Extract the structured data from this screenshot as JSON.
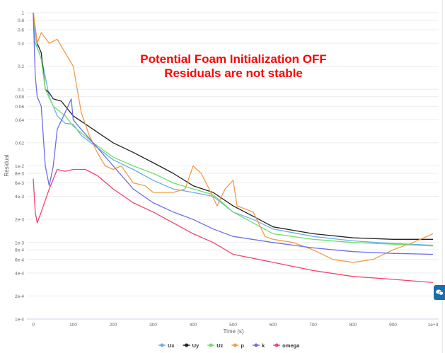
{
  "chart_data": {
    "type": "line",
    "title": "",
    "annotation": [
      "Potential Foam Initialization OFF",
      "Residuals are not stable"
    ],
    "annotation_color": "#ff0000",
    "xlabel": "Time (s)",
    "ylabel": "Residual",
    "xlim": [
      0,
      1000
    ],
    "ylim": [
      0.0001,
      1
    ],
    "y_scale": "log",
    "grid": true,
    "legend_position": "bottom",
    "x_ticks": [
      "0",
      "100",
      "200",
      "300",
      "400",
      "500",
      "600",
      "700",
      "800",
      "900",
      "1e+3"
    ],
    "y_ticks": [
      {
        "v": 1,
        "label": "1"
      },
      {
        "v": 0.8,
        "label": "0.8"
      },
      {
        "v": 0.6,
        "label": "0.6"
      },
      {
        "v": 0.4,
        "label": "0.4"
      },
      {
        "v": 0.2,
        "label": "0.2"
      },
      {
        "v": 0.1,
        "label": "0.1"
      },
      {
        "v": 0.08,
        "label": "0.08"
      },
      {
        "v": 0.06,
        "label": "0.06"
      },
      {
        "v": 0.04,
        "label": "0.04"
      },
      {
        "v": 0.02,
        "label": "0.02"
      },
      {
        "v": 0.01,
        "label": "1e-2"
      },
      {
        "v": 0.008,
        "label": "8e-3"
      },
      {
        "v": 0.006,
        "label": "6e-3"
      },
      {
        "v": 0.004,
        "label": "4e-3"
      },
      {
        "v": 0.002,
        "label": "2e-3"
      },
      {
        "v": 0.001,
        "label": "1e-3"
      },
      {
        "v": 0.0008,
        "label": "8e-4"
      },
      {
        "v": 0.0006,
        "label": "6e-4"
      },
      {
        "v": 0.0004,
        "label": "4e-4"
      },
      {
        "v": 0.0002,
        "label": "2e-4"
      },
      {
        "v": 0.0001,
        "label": "1e-4"
      }
    ],
    "series": [
      {
        "name": "Ux",
        "color": "#6aaee8",
        "x": [
          0,
          5,
          15,
          25,
          40,
          50,
          60,
          80,
          100,
          120,
          150,
          200,
          250,
          300,
          350,
          400,
          450,
          500,
          550,
          600,
          700,
          800,
          900,
          1000
        ],
        "y": [
          1,
          0.4,
          0.3,
          0.2,
          0.08,
          0.06,
          0.045,
          0.036,
          0.035,
          0.025,
          0.019,
          0.012,
          0.009,
          0.0065,
          0.005,
          0.0045,
          0.004,
          0.0025,
          0.002,
          0.0015,
          0.0012,
          0.00105,
          0.00097,
          0.00092
        ]
      },
      {
        "name": "Uy",
        "color": "#222222",
        "x": [
          0,
          10,
          20,
          30,
          40,
          50,
          70,
          100,
          150,
          200,
          250,
          300,
          350,
          400,
          450,
          500,
          550,
          600,
          700,
          800,
          900,
          1000
        ],
        "y": [
          1,
          0.4,
          0.3,
          0.1,
          0.09,
          0.075,
          0.07,
          0.045,
          0.03,
          0.02,
          0.015,
          0.011,
          0.008,
          0.0055,
          0.0045,
          0.003,
          0.0022,
          0.0016,
          0.0013,
          0.00115,
          0.0011,
          0.0011
        ]
      },
      {
        "name": "Uz",
        "color": "#6ee06a",
        "x": [
          0,
          10,
          20,
          30,
          50,
          80,
          100,
          150,
          200,
          250,
          300,
          350,
          400,
          450,
          500,
          550,
          600,
          700,
          800,
          900,
          1000
        ],
        "y": [
          1,
          0.35,
          0.25,
          0.1,
          0.06,
          0.045,
          0.033,
          0.02,
          0.013,
          0.01,
          0.008,
          0.006,
          0.005,
          0.0042,
          0.0025,
          0.0018,
          0.0013,
          0.0011,
          0.001,
          0.00095,
          0.0009
        ]
      },
      {
        "name": "p",
        "color": "#f49a45",
        "x": [
          0,
          10,
          20,
          40,
          60,
          80,
          100,
          110,
          120,
          140,
          160,
          180,
          200,
          220,
          250,
          280,
          300,
          350,
          380,
          400,
          420,
          440,
          460,
          480,
          500,
          510,
          550,
          580,
          600,
          650,
          700,
          750,
          800,
          850,
          900,
          950,
          1000
        ],
        "y": [
          1,
          0.4,
          0.55,
          0.4,
          0.45,
          0.3,
          0.2,
          0.1,
          0.05,
          0.025,
          0.015,
          0.01,
          0.009,
          0.01,
          0.006,
          0.0055,
          0.0045,
          0.0045,
          0.005,
          0.01,
          0.008,
          0.005,
          0.003,
          0.005,
          0.0065,
          0.003,
          0.0025,
          0.0012,
          0.0011,
          0.001,
          0.0008,
          0.0006,
          0.00055,
          0.0006,
          0.0008,
          0.001,
          0.0013
        ]
      },
      {
        "name": "k",
        "color": "#6b6ee8",
        "x": [
          0,
          5,
          10,
          20,
          30,
          40,
          50,
          60,
          80,
          95,
          100,
          120,
          150,
          200,
          250,
          300,
          350,
          400,
          450,
          500,
          600,
          700,
          800,
          900,
          1000
        ],
        "y": [
          1,
          0.15,
          0.08,
          0.06,
          0.01,
          0.0055,
          0.01,
          0.03,
          0.05,
          0.075,
          0.04,
          0.03,
          0.02,
          0.01,
          0.005,
          0.0033,
          0.0025,
          0.002,
          0.0015,
          0.0012,
          0.001,
          0.00085,
          0.00076,
          0.00072,
          0.0007
        ]
      },
      {
        "name": "omega",
        "color": "#f0436e",
        "x": [
          0,
          5,
          10,
          20,
          40,
          60,
          80,
          100,
          130,
          160,
          200,
          250,
          300,
          350,
          400,
          450,
          500,
          600,
          700,
          800,
          900,
          1000
        ],
        "y": [
          0.0068,
          0.0025,
          0.0018,
          0.0025,
          0.005,
          0.009,
          0.0085,
          0.009,
          0.009,
          0.0075,
          0.005,
          0.0033,
          0.0025,
          0.0018,
          0.0013,
          0.001,
          0.0007,
          0.00055,
          0.00043,
          0.00036,
          0.00033,
          0.0003
        ]
      }
    ]
  },
  "chat_button_icon": "chat-bubbles-icon"
}
